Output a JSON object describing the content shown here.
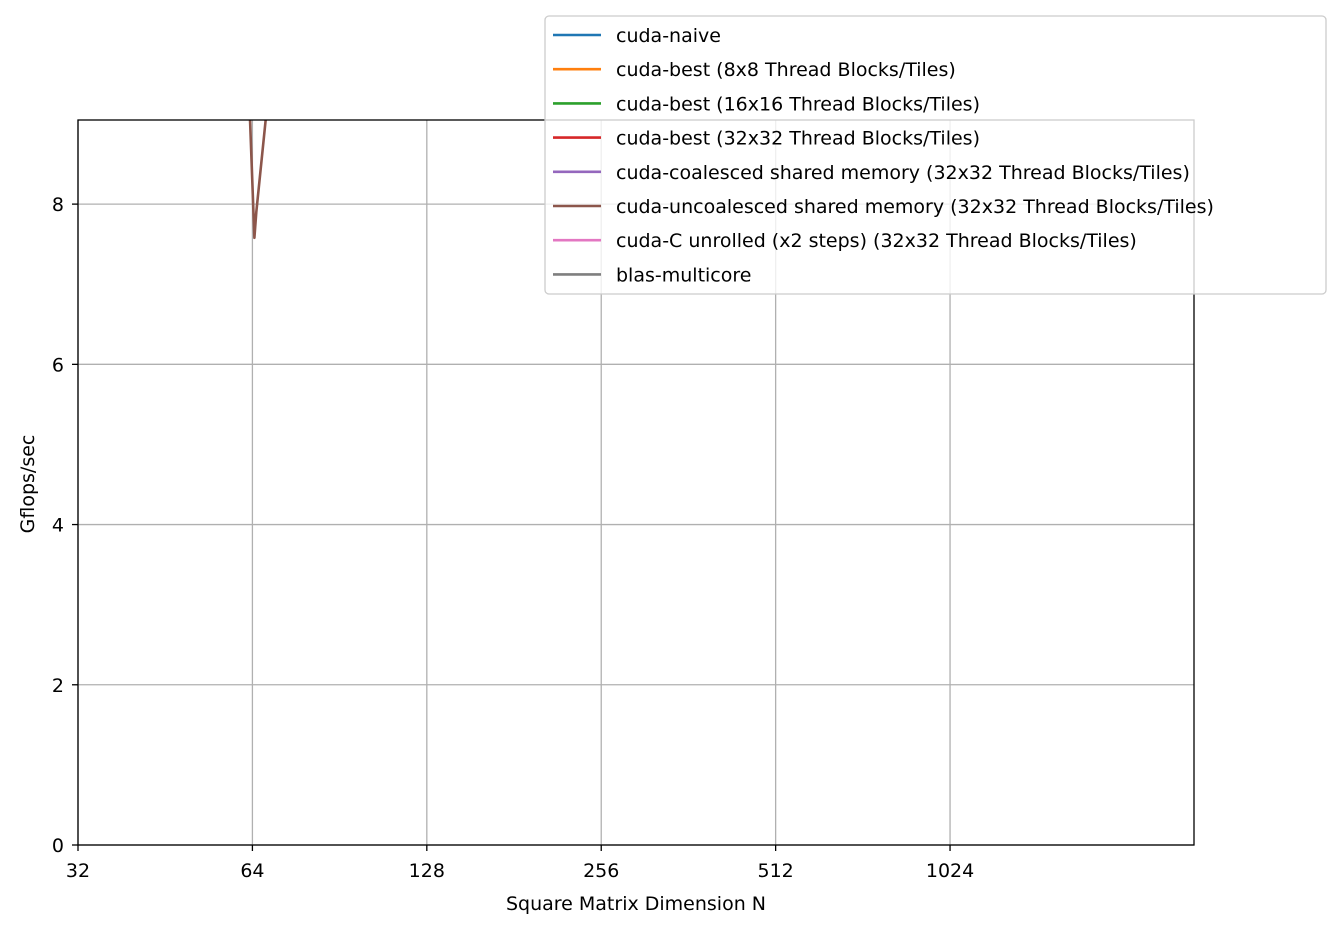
{
  "chart_data": {
    "type": "line",
    "title": "",
    "xlabel": "Square Matrix Dimension N",
    "ylabel": "Gflops/sec",
    "xscale": "log2",
    "xlim": [
      32,
      2700
    ],
    "ylim": [
      0,
      9.05
    ],
    "xticks": [
      32,
      64,
      128,
      256,
      512,
      1024
    ],
    "xtick_labels": [
      "32",
      "64",
      "128",
      "256",
      "512",
      "1024"
    ],
    "yticks": [
      0,
      2,
      4,
      6,
      8
    ],
    "ytick_labels": [
      "0",
      "2",
      "4",
      "6",
      "8"
    ],
    "grid": true,
    "legend_position": "top-right",
    "series": [
      {
        "name": "cuda-naive",
        "color": "#1f77b4",
        "x": [],
        "y": []
      },
      {
        "name": "cuda-best (8x8 Thread Blocks/Tiles)",
        "color": "#ff7f0e",
        "x": [],
        "y": []
      },
      {
        "name": "cuda-best (16x16 Thread Blocks/Tiles)",
        "color": "#2ca02c",
        "x": [],
        "y": []
      },
      {
        "name": "cuda-best (32x32 Thread Blocks/Tiles)",
        "color": "#d62728",
        "x": [],
        "y": []
      },
      {
        "name": "cuda-coalesced shared memory (32x32 Thread Blocks/Tiles)",
        "color": "#9467bd",
        "x": [],
        "y": []
      },
      {
        "name": "cuda-uncoalesced shared memory (32x32 Thread Blocks/Tiles)",
        "color": "#8c564b",
        "x": [
          63.0,
          64.5,
          65.0,
          68.0
        ],
        "y": [
          9.6,
          7.58,
          7.9,
          9.3
        ]
      },
      {
        "name": "cuda-C unrolled (x2 steps) (32x32 Thread Blocks/Tiles)",
        "color": "#e377c2",
        "x": [],
        "y": []
      },
      {
        "name": "blas-multicore",
        "color": "#7f7f7f",
        "x": [],
        "y": []
      }
    ]
  }
}
